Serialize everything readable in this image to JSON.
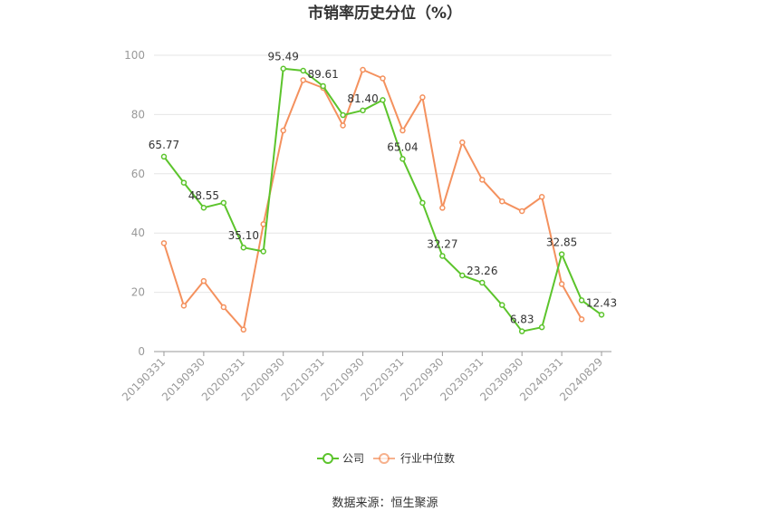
{
  "chart_data": {
    "type": "line",
    "title": "市销率历史分位（%）",
    "xlabel": "",
    "ylabel": "",
    "ylim": [
      0,
      100
    ],
    "yticks": [
      0,
      20,
      40,
      60,
      80,
      100
    ],
    "x": [
      "20190331",
      "20190630",
      "20190930",
      "20191231",
      "20200331",
      "20200630",
      "20200930",
      "20201231",
      "20210331",
      "20210630",
      "20210930",
      "20211231",
      "20220331",
      "20220630",
      "20220930",
      "20221231",
      "20230331",
      "20230630",
      "20230930",
      "20231231",
      "20240331",
      "20240630",
      "20240829"
    ],
    "xtick_labels": [
      "20190331",
      "20190930",
      "20200331",
      "20200930",
      "20210331",
      "20210930",
      "20220331",
      "20220930",
      "20230331",
      "20230930",
      "20240331",
      "20240829"
    ],
    "grid": true,
    "legend_position": "bottom",
    "series": [
      {
        "name": "公司",
        "color": "#5cc42c",
        "values": [
          65.77,
          57.0,
          48.55,
          50.2,
          35.1,
          33.8,
          95.49,
          94.8,
          89.61,
          79.8,
          81.4,
          84.9,
          65.04,
          50.2,
          32.27,
          25.7,
          23.26,
          15.7,
          6.83,
          8.2,
          32.85,
          17.3,
          12.43
        ],
        "labels": {
          "0": "65.77",
          "2": "48.55",
          "4": "35.10",
          "6": "95.49",
          "8": "89.61",
          "10": "81.40",
          "12": "65.04",
          "14": "32.27",
          "16": "23.26",
          "18": "6.83",
          "20": "32.85",
          "22": "12.43"
        }
      },
      {
        "name": "行业中位数",
        "color": "#f4915e",
        "values": [
          36.6,
          15.5,
          23.8,
          15.0,
          7.4,
          43.0,
          74.6,
          91.6,
          89.0,
          76.3,
          95.1,
          92.2,
          74.6,
          85.8,
          48.5,
          70.6,
          58.0,
          50.7,
          47.4,
          52.2,
          22.8,
          10.9,
          null
        ]
      }
    ]
  },
  "footer": {
    "source": "数据来源：恒生聚源"
  }
}
